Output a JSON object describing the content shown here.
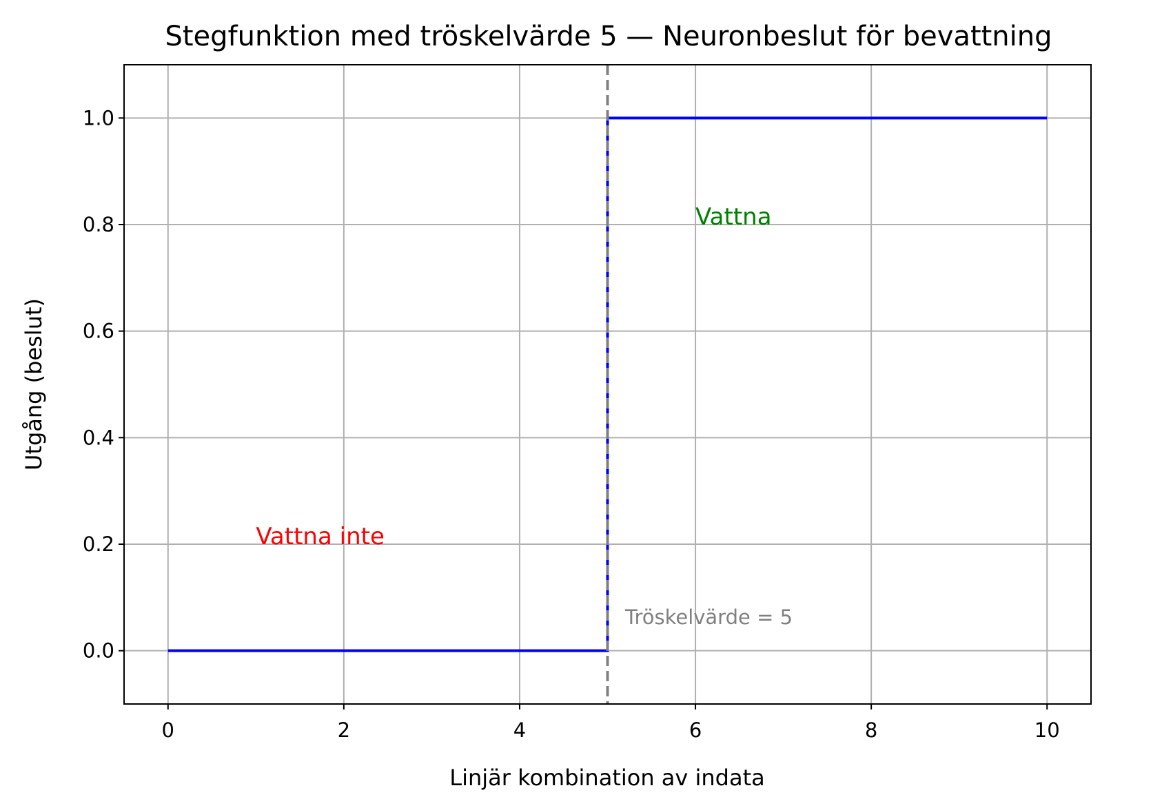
{
  "chart_data": {
    "type": "line",
    "title": "Stegfunktion med tröskelvärde 5 — Neuronbeslut för bevattning",
    "xlabel": "Linjär kombination av indata",
    "ylabel": "Utgång (beslut)",
    "xlim": [
      -0.5,
      10.5
    ],
    "ylim": [
      -0.1,
      1.1
    ],
    "xticks": [
      0,
      2,
      4,
      6,
      8,
      10
    ],
    "xtick_labels": [
      "0",
      "2",
      "4",
      "6",
      "8",
      "10"
    ],
    "yticks": [
      0.0,
      0.2,
      0.4,
      0.6,
      0.8,
      1.0
    ],
    "ytick_labels": [
      "0.0",
      "0.2",
      "0.4",
      "0.6",
      "0.8",
      "1.0"
    ],
    "grid": true,
    "series": [
      {
        "x": [
          0,
          5,
          5,
          10
        ],
        "y": [
          0,
          0,
          1,
          1
        ],
        "color": "#0000ff",
        "style": "solid"
      }
    ],
    "threshold_line": {
      "x": 5,
      "color": "#808080",
      "style": "dashed"
    },
    "annotations": [
      {
        "text": "Vattna",
        "x": 6,
        "y": 0.8,
        "color": "#008000"
      },
      {
        "text": "Vattna inte",
        "x": 1,
        "y": 0.2,
        "color": "#ff0000"
      },
      {
        "text": "Tröskelvärde = 5",
        "x": 5.2,
        "y": 0.05,
        "color": "#808080"
      }
    ]
  }
}
